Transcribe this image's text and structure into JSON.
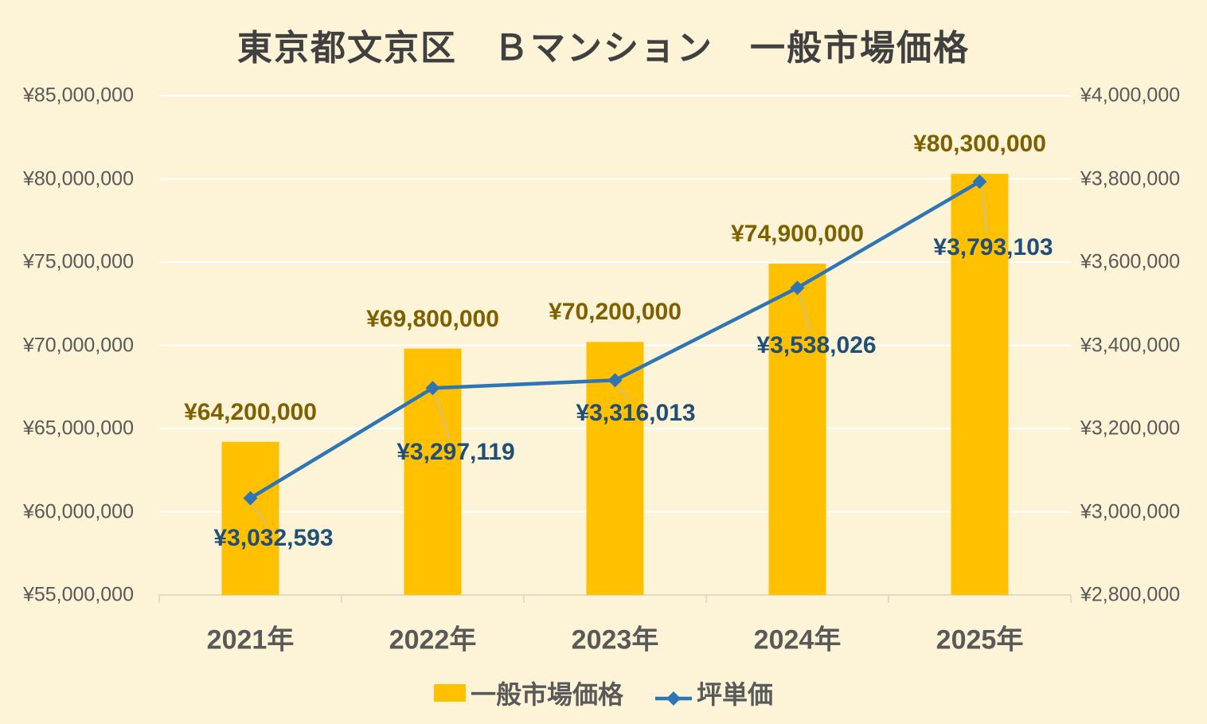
{
  "title": "東京都文京区　Ｂマンション　一般市場価格",
  "colors": {
    "background": "#FDF3D6",
    "bar": "#FFC000",
    "line": "#2E75B6",
    "bar_label": "#7F6000",
    "line_label": "#1F4E79",
    "axis_text": "#595959",
    "title_text": "#404040",
    "gridline": "#FFFFFF",
    "baseline": "#D6D2C0",
    "leader_line": "#BFBDB2"
  },
  "legend": [
    {
      "label": "一般市場価格",
      "marker": "bar-swatch-icon"
    },
    {
      "label": "坪単価",
      "marker": "line-diamond-swatch-icon"
    }
  ],
  "chart_data": {
    "type": "bar+line",
    "title": "東京都文京区　Ｂマンション　一般市場価格",
    "categories": [
      "2021年",
      "2022年",
      "2023年",
      "2024年",
      "2025年"
    ],
    "series": [
      {
        "name": "一般市場価格",
        "type": "bar",
        "axis": "left",
        "values": [
          64200000,
          69800000,
          70200000,
          74900000,
          80300000
        ],
        "labels": [
          "¥64,200,000",
          "¥69,800,000",
          "¥70,200,000",
          "¥74,900,000",
          "¥80,300,000"
        ]
      },
      {
        "name": "坪単価",
        "type": "line",
        "axis": "right",
        "values": [
          3032593,
          3297119,
          3316013,
          3538026,
          3793103
        ],
        "labels": [
          "¥3,032,593",
          "¥3,297,119",
          "¥3,316,013",
          "¥3,538,026",
          "¥3,793,103"
        ]
      }
    ],
    "left_axis": {
      "min": 55000000,
      "max": 85000000,
      "step": 5000000,
      "tick_labels": [
        "¥55,000,000",
        "¥60,000,000",
        "¥65,000,000",
        "¥70,000,000",
        "¥75,000,000",
        "¥80,000,000",
        "¥85,000,000"
      ]
    },
    "right_axis": {
      "min": 2800000,
      "max": 4000000,
      "step": 200000,
      "tick_labels": [
        "¥2,800,000",
        "¥3,000,000",
        "¥3,200,000",
        "¥3,400,000",
        "¥3,600,000",
        "¥3,800,000",
        "¥4,000,000"
      ]
    },
    "grid": true,
    "legend_position": "bottom"
  }
}
